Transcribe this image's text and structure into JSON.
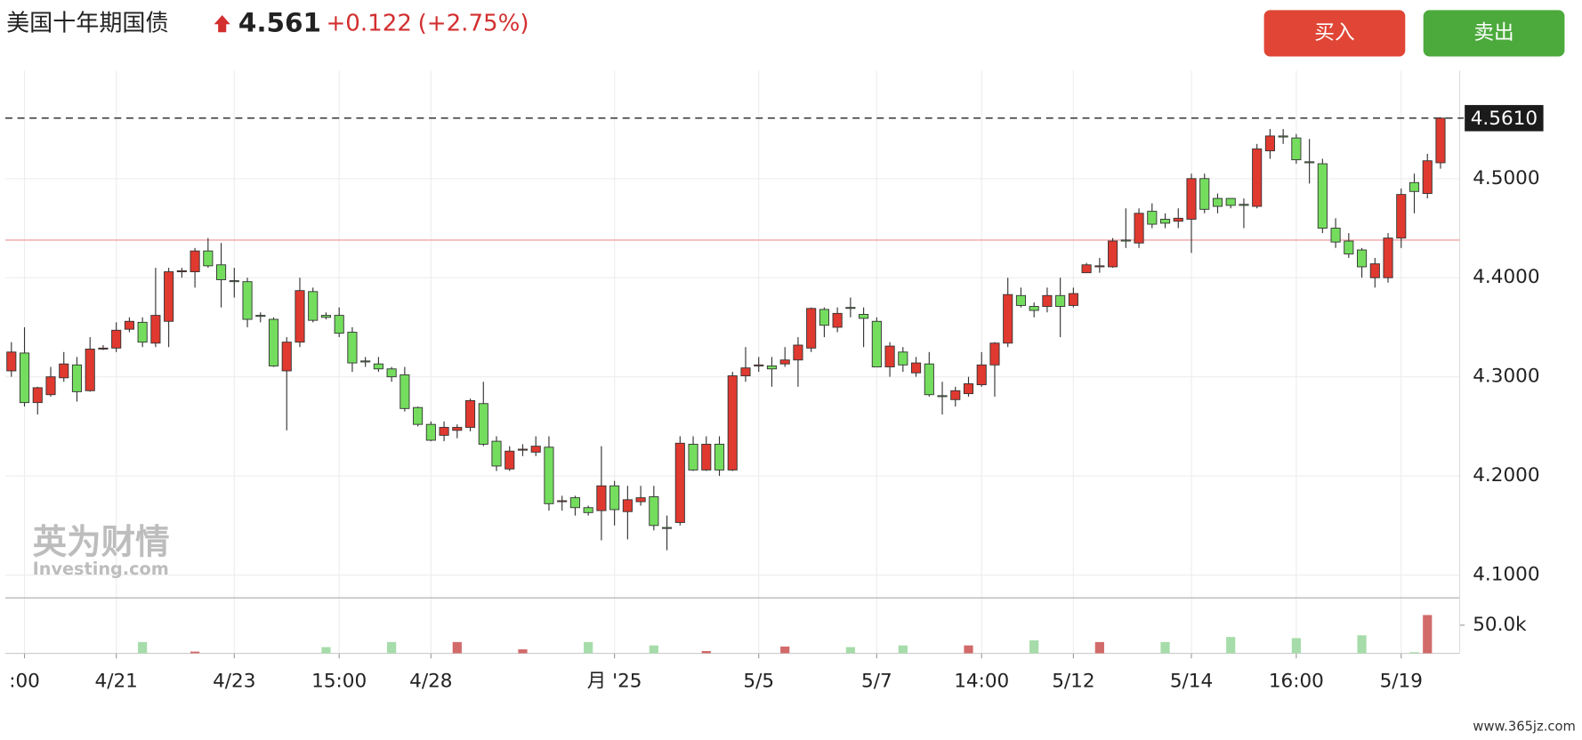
{
  "chart_data": {
    "type": "candlestick",
    "title": "美国十年期国债",
    "price": 4.561,
    "change": "+0.122",
    "change_pct": "(+2.75%)",
    "buttons": [
      "买入",
      "卖出"
    ],
    "watermark": "英为财情",
    "watermark_sub": "Investing.com",
    "site": "www.365jz.com",
    "up_color": "#e0392f",
    "down_color": "#74dd5e",
    "ylim": [
      4.078,
      4.609
    ],
    "yticks": [
      {
        "value": 4.1,
        "label": "4.1000"
      },
      {
        "value": 4.2,
        "label": "4.2000"
      },
      {
        "value": 4.3,
        "label": "4.3000"
      },
      {
        "value": 4.4,
        "label": "4.4000"
      },
      {
        "value": 4.5,
        "label": "4.5000"
      }
    ],
    "last_price": {
      "value": 4.561,
      "label": "4.5610"
    },
    "ref_line": 4.438,
    "vlim": [
      0,
      95000
    ],
    "vticks": [
      {
        "value": 50000,
        "label": "50.0k"
      }
    ],
    "categories": [
      null,
      ":00",
      null,
      null,
      null,
      null,
      null,
      null,
      "4/21",
      null,
      null,
      null,
      null,
      null,
      null,
      null,
      null,
      "4/23",
      null,
      null,
      null,
      null,
      null,
      null,
      null,
      "15:00",
      null,
      null,
      null,
      null,
      null,
      null,
      "4/28",
      null,
      null,
      null,
      null,
      null,
      null,
      null,
      null,
      null,
      null,
      null,
      null,
      null,
      "月 '25",
      null,
      null,
      null,
      null,
      null,
      null,
      null,
      null,
      null,
      null,
      "5/5",
      null,
      null,
      null,
      null,
      null,
      null,
      null,
      null,
      "5/7",
      null,
      null,
      null,
      null,
      null,
      null,
      null,
      "14:00",
      null,
      null,
      null,
      null,
      null,
      null,
      "5/12",
      null,
      null,
      null,
      null,
      null,
      null,
      null,
      null,
      "5/14",
      null,
      null,
      null,
      null,
      null,
      null,
      null,
      "16:00",
      null,
      null,
      null,
      null,
      null,
      null,
      null,
      "5/19",
      null,
      null,
      null
    ],
    "ohlc": [
      [
        4.306,
        4.335,
        4.3,
        4.325
      ],
      [
        4.324,
        4.35,
        4.27,
        4.274
      ],
      [
        4.274,
        4.29,
        4.262,
        4.289
      ],
      [
        4.282,
        4.31,
        4.28,
        4.3
      ],
      [
        4.299,
        4.325,
        4.295,
        4.313
      ],
      [
        4.312,
        4.32,
        4.275,
        4.285
      ],
      [
        4.286,
        4.34,
        4.285,
        4.328
      ],
      [
        4.328,
        4.332,
        4.327,
        4.329
      ],
      [
        4.329,
        4.355,
        4.325,
        4.347
      ],
      [
        4.348,
        4.36,
        4.345,
        4.356
      ],
      [
        4.355,
        4.36,
        4.33,
        4.335
      ],
      [
        4.334,
        4.41,
        4.33,
        4.362
      ],
      [
        4.356,
        4.41,
        4.33,
        4.406
      ],
      [
        4.406,
        4.41,
        4.4,
        4.407
      ],
      [
        4.406,
        4.43,
        4.39,
        4.427
      ],
      [
        4.427,
        4.44,
        4.41,
        4.412
      ],
      [
        4.413,
        4.435,
        4.37,
        4.398
      ],
      [
        4.397,
        4.41,
        4.38,
        4.396
      ],
      [
        4.396,
        4.4,
        4.35,
        4.358
      ],
      [
        4.362,
        4.365,
        4.355,
        4.361
      ],
      [
        4.358,
        4.36,
        4.31,
        4.311
      ],
      [
        4.306,
        4.34,
        4.246,
        4.335
      ],
      [
        4.335,
        4.4,
        4.33,
        4.387
      ],
      [
        4.386,
        4.39,
        4.355,
        4.357
      ],
      [
        4.362,
        4.365,
        4.358,
        4.36
      ],
      [
        4.362,
        4.37,
        4.34,
        4.344
      ],
      [
        4.345,
        4.35,
        4.305,
        4.314
      ],
      [
        4.316,
        4.32,
        4.31,
        4.315
      ],
      [
        4.313,
        4.32,
        4.305,
        4.308
      ],
      [
        4.308,
        4.31,
        4.295,
        4.3
      ],
      [
        4.302,
        4.31,
        4.265,
        4.268
      ],
      [
        4.269,
        4.27,
        4.25,
        4.252
      ],
      [
        4.252,
        4.255,
        4.235,
        4.236
      ],
      [
        4.241,
        4.255,
        4.235,
        4.249
      ],
      [
        4.246,
        4.252,
        4.238,
        4.249
      ],
      [
        4.249,
        4.278,
        4.245,
        4.276
      ],
      [
        4.273,
        4.295,
        4.23,
        4.232
      ],
      [
        4.235,
        4.24,
        4.205,
        4.21
      ],
      [
        4.207,
        4.23,
        4.205,
        4.225
      ],
      [
        4.226,
        4.232,
        4.22,
        4.227
      ],
      [
        4.224,
        4.24,
        4.22,
        4.23
      ],
      [
        4.229,
        4.24,
        4.165,
        4.172
      ],
      [
        4.174,
        4.18,
        4.165,
        4.175
      ],
      [
        4.178,
        4.18,
        4.16,
        4.168
      ],
      [
        4.168,
        4.17,
        4.16,
        4.163
      ],
      [
        4.165,
        4.23,
        4.135,
        4.19
      ],
      [
        4.19,
        4.195,
        4.15,
        4.166
      ],
      [
        4.164,
        4.19,
        4.136,
        4.176
      ],
      [
        4.174,
        4.19,
        4.17,
        4.178
      ],
      [
        4.179,
        4.19,
        4.145,
        4.15
      ],
      [
        4.148,
        4.16,
        4.125,
        4.147
      ],
      [
        4.153,
        4.24,
        4.15,
        4.233
      ],
      [
        4.232,
        4.24,
        4.205,
        4.206
      ],
      [
        4.206,
        4.24,
        4.205,
        4.232
      ],
      [
        4.232,
        4.24,
        4.2,
        4.206
      ],
      [
        4.206,
        4.305,
        4.205,
        4.301
      ],
      [
        4.301,
        4.33,
        4.295,
        4.309
      ],
      [
        4.311,
        4.32,
        4.305,
        4.312
      ],
      [
        4.311,
        4.32,
        4.29,
        4.308
      ],
      [
        4.313,
        4.33,
        4.31,
        4.317
      ],
      [
        4.317,
        4.34,
        4.29,
        4.332
      ],
      [
        4.329,
        4.37,
        4.325,
        4.369
      ],
      [
        4.368,
        4.37,
        4.34,
        4.352
      ],
      [
        4.35,
        4.37,
        4.345,
        4.364
      ],
      [
        4.37,
        4.38,
        4.36,
        4.369
      ],
      [
        4.363,
        4.37,
        4.33,
        4.359
      ],
      [
        4.356,
        4.36,
        4.31,
        4.31
      ],
      [
        4.31,
        4.335,
        4.3,
        4.331
      ],
      [
        4.325,
        4.33,
        4.305,
        4.312
      ],
      [
        4.304,
        4.32,
        4.3,
        4.314
      ],
      [
        4.313,
        4.325,
        4.28,
        4.282
      ],
      [
        4.281,
        4.295,
        4.262,
        4.28
      ],
      [
        4.277,
        4.29,
        4.27,
        4.286
      ],
      [
        4.283,
        4.3,
        4.28,
        4.293
      ],
      [
        4.292,
        4.325,
        4.29,
        4.312
      ],
      [
        4.312,
        4.335,
        4.28,
        4.334
      ],
      [
        4.334,
        4.4,
        4.33,
        4.383
      ],
      [
        4.382,
        4.39,
        4.37,
        4.372
      ],
      [
        4.371,
        4.375,
        4.36,
        4.367
      ],
      [
        4.371,
        4.39,
        4.365,
        4.382
      ],
      [
        4.382,
        4.4,
        4.34,
        4.371
      ],
      [
        4.372,
        4.39,
        4.37,
        4.384
      ],
      [
        4.405,
        4.415,
        4.405,
        4.413
      ],
      [
        4.411,
        4.42,
        4.405,
        4.412
      ],
      [
        4.411,
        4.44,
        4.41,
        4.437
      ],
      [
        4.438,
        4.47,
        4.43,
        4.437
      ],
      [
        4.435,
        4.47,
        4.43,
        4.465
      ],
      [
        4.467,
        4.475,
        4.45,
        4.454
      ],
      [
        4.459,
        4.465,
        4.45,
        4.455
      ],
      [
        4.457,
        4.47,
        4.45,
        4.46
      ],
      [
        4.459,
        4.505,
        4.425,
        4.5
      ],
      [
        4.5,
        4.505,
        4.465,
        4.469
      ],
      [
        4.48,
        4.485,
        4.465,
        4.472
      ],
      [
        4.48,
        4.48,
        4.47,
        4.473
      ],
      [
        4.474,
        4.48,
        4.45,
        4.473
      ],
      [
        4.472,
        4.535,
        4.47,
        4.53
      ],
      [
        4.528,
        4.55,
        4.52,
        4.543
      ],
      [
        4.543,
        4.55,
        4.535,
        4.542
      ],
      [
        4.541,
        4.545,
        4.515,
        4.519
      ],
      [
        4.517,
        4.54,
        4.495,
        4.516
      ],
      [
        4.515,
        4.52,
        4.445,
        4.45
      ],
      [
        4.45,
        4.46,
        4.43,
        4.436
      ],
      [
        4.437,
        4.445,
        4.42,
        4.424
      ],
      [
        4.428,
        4.43,
        4.4,
        4.411
      ],
      [
        4.4,
        4.42,
        4.39,
        4.414
      ],
      [
        4.4,
        4.445,
        4.395,
        4.44
      ],
      [
        4.44,
        4.49,
        4.43,
        4.484
      ],
      [
        4.496,
        4.505,
        4.465,
        4.487
      ],
      [
        4.485,
        4.525,
        4.48,
        4.518
      ],
      [
        4.516,
        4.562,
        4.51,
        4.561
      ]
    ],
    "volume": [
      null,
      null,
      null,
      null,
      null,
      null,
      null,
      null,
      null,
      null,
      20000,
      null,
      null,
      null,
      3000,
      null,
      null,
      null,
      null,
      null,
      null,
      null,
      null,
      null,
      11000,
      null,
      null,
      null,
      null,
      20000,
      null,
      null,
      null,
      null,
      20000,
      null,
      null,
      null,
      null,
      7000,
      null,
      null,
      null,
      null,
      20000,
      null,
      null,
      null,
      null,
      14000,
      null,
      null,
      null,
      4000,
      null,
      null,
      null,
      null,
      null,
      12000,
      null,
      null,
      null,
      null,
      11000,
      null,
      null,
      null,
      14000,
      null,
      null,
      null,
      null,
      14000,
      null,
      null,
      null,
      null,
      23000,
      null,
      null,
      null,
      null,
      20000,
      null,
      null,
      null,
      null,
      20000,
      null,
      null,
      null,
      null,
      29000,
      null,
      null,
      null,
      null,
      27000,
      null,
      null,
      null,
      null,
      32000,
      null,
      null,
      null,
      2000,
      68000,
      null
    ]
  }
}
